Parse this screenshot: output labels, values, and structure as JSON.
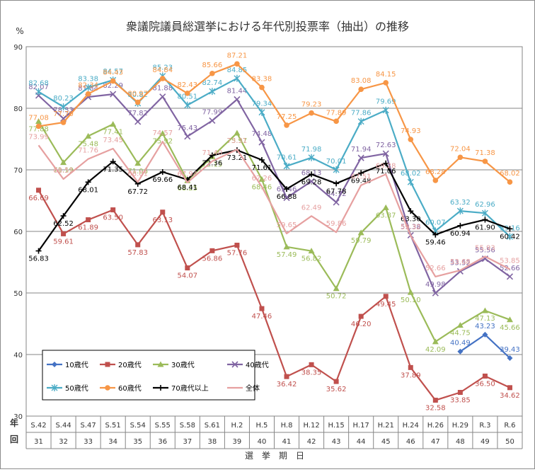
{
  "chart_data": {
    "type": "line",
    "title": "衆議院議員総選挙における年代別投票率（抽出）の推移",
    "ylabel": "%",
    "xlabel": "選　挙　期　日",
    "row_label_top": "年",
    "row_label_bottom": "回",
    "ylim": [
      30,
      90
    ],
    "yticks": [
      30,
      40,
      50,
      60,
      70,
      80,
      90
    ],
    "grid": true,
    "legend_position": "bottom-left",
    "categories": [
      "S.42",
      "S.44",
      "S.47",
      "S.51",
      "S.54",
      "S.55",
      "S.58",
      "S.61",
      "H.2",
      "H.5",
      "H.8",
      "H.12",
      "H.15",
      "H.17",
      "H.21",
      "H.24",
      "H.26",
      "H.29",
      "R.3",
      "R.6"
    ],
    "sessions": [
      "31",
      "32",
      "33",
      "34",
      "35",
      "36",
      "37",
      "38",
      "39",
      "40",
      "41",
      "42",
      "43",
      "44",
      "45",
      "46",
      "47",
      "48",
      "49",
      "50"
    ],
    "series": [
      {
        "name": "10歳代",
        "color": "#4472C4",
        "marker": "diamond",
        "values": [
          null,
          null,
          null,
          null,
          null,
          null,
          null,
          null,
          null,
          null,
          null,
          null,
          null,
          null,
          null,
          null,
          null,
          40.49,
          43.23,
          39.43
        ]
      },
      {
        "name": "20歳代",
        "color": "#C0504D",
        "marker": "square",
        "values": [
          66.69,
          59.61,
          61.89,
          63.5,
          57.83,
          63.13,
          54.07,
          56.86,
          57.76,
          47.46,
          36.42,
          38.35,
          35.62,
          46.2,
          49.45,
          37.89,
          32.58,
          33.85,
          36.5,
          34.62
        ]
      },
      {
        "name": "30歳代",
        "color": "#9BBB59",
        "marker": "triangle",
        "values": [
          77.88,
          71.19,
          75.48,
          77.41,
          71.06,
          75.92,
          68.25,
          72.15,
          75.97,
          68.46,
          57.49,
          56.82,
          50.72,
          59.79,
          63.87,
          50.1,
          42.09,
          44.75,
          47.13,
          45.66
        ]
      },
      {
        "name": "40歳代",
        "color": "#8064A2",
        "marker": "x",
        "values": [
          82.07,
          78.33,
          81.84,
          82.29,
          77.82,
          81.88,
          75.43,
          77.99,
          81.44,
          74.48,
          65.46,
          68.13,
          64.72,
          71.94,
          72.63,
          59.38,
          49.98,
          53.52,
          55.56,
          52.66
        ]
      },
      {
        "name": "50歳代",
        "color": "#4BACC6",
        "marker": "star",
        "values": [
          82.68,
          80.23,
          83.38,
          84.57,
          80.82,
          85.23,
          80.51,
          82.74,
          84.85,
          79.34,
          70.61,
          71.98,
          70.01,
          77.86,
          79.69,
          68.02,
          60.07,
          63.32,
          62.96,
          59.16
        ]
      },
      {
        "name": "60歳代",
        "color": "#F79646",
        "marker": "circle",
        "values": [
          77.08,
          77.7,
          82.34,
          84.43,
          80.97,
          84.84,
          82.43,
          85.66,
          87.21,
          83.38,
          77.25,
          79.23,
          77.89,
          83.08,
          84.15,
          74.93,
          68.28,
          72.04,
          71.38,
          68.02
        ]
      },
      {
        "name": "70歳代以上",
        "color": "#000000",
        "marker": "plus",
        "values": [
          56.83,
          62.52,
          68.01,
          71.35,
          67.72,
          69.66,
          68.41,
          72.36,
          73.21,
          71.61,
          66.88,
          69.28,
          67.78,
          69.48,
          71.06,
          63.3,
          59.46,
          60.94,
          61.9,
          60.42
        ]
      },
      {
        "name": "全体",
        "color": "#E6A0A0",
        "marker": "none",
        "values": [
          73.99,
          68.51,
          71.76,
          73.45,
          68.01,
          74.57,
          67.94,
          71.4,
          73.31,
          67.26,
          59.65,
          62.49,
          59.86,
          67.51,
          69.28,
          59.32,
          52.66,
          53.68,
          55.93,
          53.85
        ]
      }
    ]
  }
}
